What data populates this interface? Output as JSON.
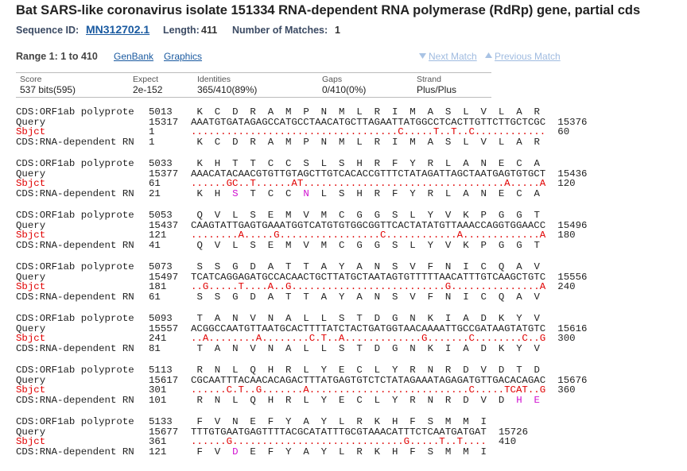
{
  "header": {
    "title": "Bat SARS-like coronavirus isolate 151334 RNA-dependent RNA polymerase (RdRp) gene, partial cds",
    "sequence_id_label": "Sequence ID:",
    "sequence_id": "MN312702.1",
    "length_label": "Length:",
    "length": 411,
    "matches_label": "Number of Matches:",
    "matches": 1
  },
  "range": {
    "label": "Range 1: 1 to 410",
    "genbank": "GenBank",
    "graphics": "Graphics",
    "next": "Next Match",
    "previous": "Previous Match"
  },
  "stats": {
    "headers": [
      "Score",
      "Expect",
      "Identities",
      "Gaps",
      "Strand"
    ],
    "values": [
      "537 bits(595)",
      "2e-152",
      "365/410(89%)",
      "0/410(0%)",
      "Plus/Plus"
    ]
  },
  "row_labels": {
    "top": "CDS:ORF1ab polyprote",
    "query": "Query",
    "sbjct": "Sbjct",
    "bottom": "CDS:RNA-dependent RN"
  },
  "blocks": [
    {
      "top_start": 5013,
      "top_aa": [
        "K",
        "C",
        "D",
        "R",
        "A",
        "M",
        "P",
        "N",
        "M",
        "L",
        "R",
        "I",
        "M",
        "A",
        "S",
        "L",
        "V",
        "L",
        "A",
        "R"
      ],
      "query_start": 15317,
      "query_seq": "AAATGTGATAGAGCCATGCCTAACATGCTTAGAATTATGGCCTCACTTGTTCTTGCTCGC",
      "query_end": 15376,
      "sbjct_start": 1,
      "sbjct_seq": "...................................C.....T..T..C............",
      "sbjct_end": 60,
      "bottom_start": 1,
      "bottom_aa": [
        "K",
        "C",
        "D",
        "R",
        "A",
        "M",
        "P",
        "N",
        "M",
        "L",
        "R",
        "I",
        "M",
        "A",
        "S",
        "L",
        "V",
        "L",
        "A",
        "R"
      ]
    },
    {
      "top_start": 5033,
      "top_aa": [
        "K",
        "H",
        "T",
        "T",
        "C",
        "C",
        "S",
        "L",
        "S",
        "H",
        "R",
        "F",
        "Y",
        "R",
        "L",
        "A",
        "N",
        "E",
        "C",
        "A"
      ],
      "query_start": 15377,
      "query_seq": "AAACATACAACGTGTTGTAGCTTGTCACACCGTTTCTATAGATTAGCTAATGAGTGTGCT",
      "query_end": 15436,
      "sbjct_start": 61,
      "sbjct_seq": "......GC..T......AT..................................A.....A",
      "sbjct_end": 120,
      "bottom_start": 21,
      "bottom_aa": [
        "K",
        "H",
        {
          "aa": "S",
          "changed": true
        },
        "T",
        "C",
        "C",
        {
          "aa": "N",
          "changed": true
        },
        "L",
        "S",
        "H",
        "R",
        "F",
        "Y",
        "R",
        "L",
        "A",
        "N",
        "E",
        "C",
        "A"
      ]
    },
    {
      "top_start": 5053,
      "top_aa": [
        "Q",
        "V",
        "L",
        "S",
        "E",
        "M",
        "V",
        "M",
        "C",
        "G",
        "G",
        "S",
        "L",
        "Y",
        "V",
        "K",
        "P",
        "G",
        "G",
        "T"
      ],
      "query_start": 15437,
      "query_seq": "CAAGTATTGAGTGAAATGGTCATGTGTGGCGGTTCACTATATGTTAAACCAGGTGGAACC",
      "query_end": 15496,
      "sbjct_start": 121,
      "sbjct_seq": "........A.....G.................C............A.............A",
      "sbjct_end": 180,
      "bottom_start": 41,
      "bottom_aa": [
        "Q",
        "V",
        "L",
        "S",
        "E",
        "M",
        "V",
        "M",
        "C",
        "G",
        "G",
        "S",
        "L",
        "Y",
        "V",
        "K",
        "P",
        "G",
        "G",
        "T"
      ]
    },
    {
      "top_start": 5073,
      "top_aa": [
        "S",
        "S",
        "G",
        "D",
        "A",
        "T",
        "T",
        "A",
        "Y",
        "A",
        "N",
        "S",
        "V",
        "F",
        "N",
        "I",
        "C",
        "Q",
        "A",
        "V"
      ],
      "query_start": 15497,
      "query_seq": "TCATCAGGAGATGCCACAACTGCTTATGCTAATAGTGTTTTTAACATTTGTCAAGCTGTC",
      "query_end": 15556,
      "sbjct_start": 181,
      "sbjct_seq": "..G.....T....A..G..........................G...............A",
      "sbjct_end": 240,
      "bottom_start": 61,
      "bottom_aa": [
        "S",
        "S",
        "G",
        "D",
        "A",
        "T",
        "T",
        "A",
        "Y",
        "A",
        "N",
        "S",
        "V",
        "F",
        "N",
        "I",
        "C",
        "Q",
        "A",
        "V"
      ]
    },
    {
      "top_start": 5093,
      "top_aa": [
        "T",
        "A",
        "N",
        "V",
        "N",
        "A",
        "L",
        "L",
        "S",
        "T",
        "D",
        "G",
        "N",
        "K",
        "I",
        "A",
        "D",
        "K",
        "Y",
        "V"
      ],
      "query_start": 15557,
      "query_seq": "ACGGCCAATGTTAATGCACTTTTATCTACTGATGGTAACAAAATTGCCGATAAGTATGTC",
      "query_end": 15616,
      "sbjct_start": 241,
      "sbjct_seq": "..A........A........C.T..A.............G.......C........C..G",
      "sbjct_end": 300,
      "bottom_start": 81,
      "bottom_aa": [
        "T",
        "A",
        "N",
        "V",
        "N",
        "A",
        "L",
        "L",
        "S",
        "T",
        "D",
        "G",
        "N",
        "K",
        "I",
        "A",
        "D",
        "K",
        "Y",
        "V"
      ]
    },
    {
      "top_start": 5113,
      "top_aa": [
        "R",
        "N",
        "L",
        "Q",
        "H",
        "R",
        "L",
        "Y",
        "E",
        "C",
        "L",
        "Y",
        "R",
        "N",
        "R",
        "D",
        "V",
        "D",
        "T",
        "D"
      ],
      "query_start": 15617,
      "query_seq": "CGCAATTTACAACACAGACTTTATGAGTGTCTCTATAGAAATAGAGATGTTGACACAGAC",
      "query_end": 15676,
      "sbjct_start": 301,
      "sbjct_seq": "......C.T..G.......A...........................C.....TCAT..G",
      "sbjct_end": 360,
      "bottom_start": 101,
      "bottom_aa": [
        "R",
        "N",
        "L",
        "Q",
        "H",
        "R",
        "L",
        "Y",
        "E",
        "C",
        "L",
        "Y",
        "R",
        "N",
        "R",
        "D",
        "V",
        "D",
        {
          "aa": "H",
          "changed": true
        },
        {
          "aa": "E",
          "changed": true
        }
      ]
    },
    {
      "top_start": 5133,
      "top_aa": [
        "F",
        "V",
        "N",
        "E",
        "F",
        "Y",
        "A",
        "Y",
        "L",
        "R",
        "K",
        "H",
        "F",
        "S",
        "M",
        "M",
        "I"
      ],
      "query_start": 15677,
      "query_seq": "TTTGTGAATGAGTTTTACGCATATTTGCGTAAACATTTCTCAATGATGAT",
      "query_end": 15726,
      "sbjct_start": 361,
      "sbjct_seq": "......G.............................G.....T..T....",
      "sbjct_end": 410,
      "bottom_start": 121,
      "bottom_aa": [
        "F",
        "V",
        {
          "aa": "D",
          "changed": true
        },
        "E",
        "F",
        "Y",
        "A",
        "Y",
        "L",
        "R",
        "K",
        "H",
        "F",
        "S",
        "M",
        "M",
        "I"
      ]
    }
  ]
}
